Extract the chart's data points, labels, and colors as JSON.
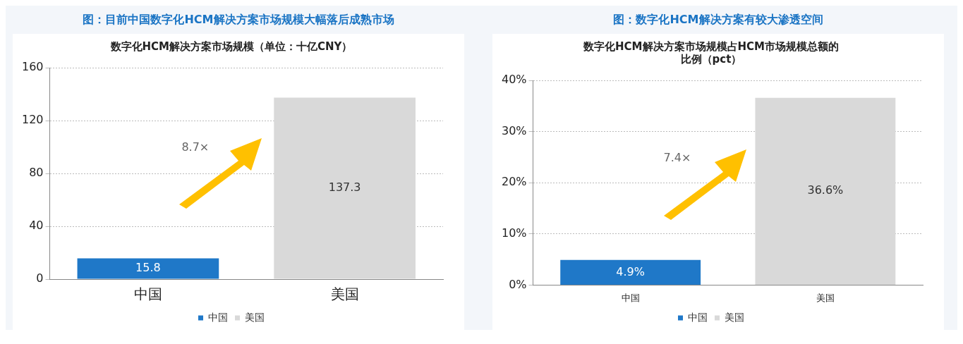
{
  "chart_data": [
    {
      "type": "bar",
      "title": "图：目前中国数字化HCM解决方案市场规模大幅落后成熟市场",
      "subtitle": "数字化HCM解决方案市场规模（单位：十亿CNY）",
      "categories": [
        "中国",
        "美国"
      ],
      "series": [
        {
          "name": "中国",
          "color": "#1f78c8",
          "values": [
            15.8,
            null
          ]
        },
        {
          "name": "美国",
          "color": "#d9d9d9",
          "values": [
            null,
            137.3
          ]
        }
      ],
      "ylim": [
        0,
        160
      ],
      "yticks": [
        0,
        40,
        80,
        120,
        160
      ],
      "grid": "y",
      "legend": "bottom",
      "data_labels": true,
      "annotations": [
        "8.7×"
      ]
    },
    {
      "type": "bar",
      "title": "图：数字化HCM解决方案有较大渗透空间",
      "subtitle": "数字化HCM解决方案市场规模占HCM市场规模总额的比例（pct）",
      "categories": [
        "中国",
        "美国"
      ],
      "series": [
        {
          "name": "中国",
          "color": "#1f78c8",
          "values": [
            4.9,
            null
          ],
          "value_labels": [
            "4.9%",
            null
          ]
        },
        {
          "name": "美国",
          "color": "#d9d9d9",
          "values": [
            null,
            36.6
          ],
          "value_labels": [
            null,
            "36.6%"
          ]
        }
      ],
      "ylim": [
        0,
        40
      ],
      "yticks": [
        {
          "value": 0,
          "label": "0%"
        },
        {
          "value": 10,
          "label": "10%"
        },
        {
          "value": 20,
          "label": "20%"
        },
        {
          "value": 30,
          "label": "30%"
        },
        {
          "value": 40,
          "label": "40%"
        }
      ],
      "grid": "y",
      "legend": "bottom",
      "annotations": [
        "7.4×"
      ]
    }
  ]
}
